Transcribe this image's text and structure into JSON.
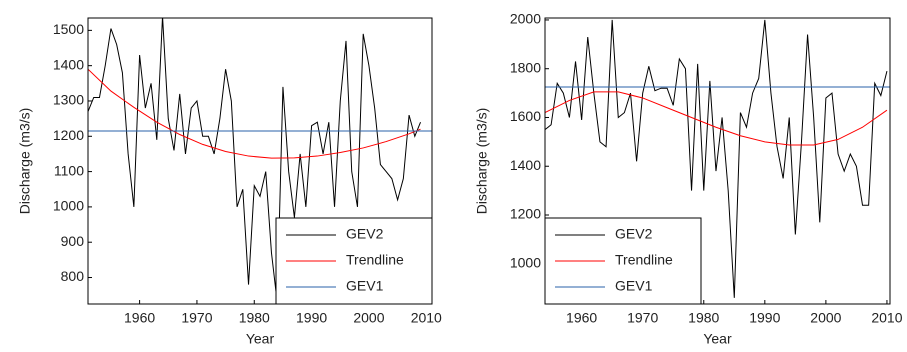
{
  "chart_data": [
    {
      "type": "line",
      "xlabel": "Year",
      "ylabel": "Discharge (m3/s)",
      "xlim": [
        1951,
        2011
      ],
      "ylim": [
        725,
        1535
      ],
      "xticks": [
        1960,
        1970,
        1980,
        1990,
        2000,
        2010
      ],
      "yticks": [
        800,
        900,
        1000,
        1100,
        1200,
        1300,
        1400,
        1500
      ],
      "legend": "lower right",
      "series": [
        {
          "name": "GEV2",
          "color": "#000000",
          "x": [
            1951,
            1952,
            1953,
            1954,
            1955,
            1956,
            1957,
            1958,
            1959,
            1960,
            1961,
            1962,
            1963,
            1964,
            1965,
            1966,
            1967,
            1968,
            1969,
            1970,
            1971,
            1972,
            1973,
            1974,
            1975,
            1976,
            1977,
            1978,
            1979,
            1980,
            1981,
            1982,
            1983,
            1984,
            1985,
            1986,
            1987,
            1988,
            1989,
            1990,
            1991,
            1992,
            1993,
            1994,
            1995,
            1996,
            1997,
            1998,
            1999,
            2000,
            2001,
            2002,
            2003,
            2004,
            2005,
            2006,
            2007,
            2008,
            2009
          ],
          "values": [
            1270,
            1310,
            1310,
            1400,
            1505,
            1460,
            1380,
            1150,
            1000,
            1430,
            1280,
            1350,
            1190,
            1540,
            1250,
            1160,
            1320,
            1150,
            1280,
            1300,
            1200,
            1200,
            1150,
            1250,
            1390,
            1300,
            1000,
            1050,
            780,
            1060,
            1030,
            1100,
            870,
            730,
            1340,
            1100,
            970,
            1150,
            1000,
            1230,
            1240,
            1150,
            1240,
            1000,
            1300,
            1470,
            1100,
            1000,
            1490,
            1400,
            1280,
            1120,
            1100,
            1080,
            1020,
            1080,
            1260,
            1200,
            1240
          ]
        },
        {
          "name": "Trendline",
          "color": "#ff0000",
          "x": [
            1951,
            1955,
            1959,
            1963,
            1967,
            1971,
            1975,
            1979,
            1983,
            1987,
            1991,
            1995,
            1999,
            2003,
            2007,
            2009
          ],
          "values": [
            1390,
            1328,
            1282,
            1240,
            1205,
            1177,
            1157,
            1144,
            1138,
            1139,
            1144,
            1154,
            1167,
            1185,
            1207,
            1220
          ]
        },
        {
          "name": "GEV1",
          "color": "#2a62a8",
          "x": [
            1951,
            2011
          ],
          "values": [
            1215,
            1215
          ]
        }
      ]
    },
    {
      "type": "line",
      "xlabel": "Year",
      "ylabel": "Discharge (m3/s)",
      "xlim": [
        1954,
        2010.5
      ],
      "ylim": [
        835,
        2008
      ],
      "xticks": [
        1960,
        1970,
        1980,
        1990,
        2000,
        2010
      ],
      "yticks": [
        1000,
        1200,
        1400,
        1600,
        1800,
        2000
      ],
      "legend": "lower left",
      "series": [
        {
          "name": "GEV2",
          "color": "#000000",
          "x": [
            1954,
            1955,
            1956,
            1957,
            1958,
            1959,
            1960,
            1961,
            1962,
            1963,
            1964,
            1965,
            1966,
            1967,
            1968,
            1969,
            1970,
            1971,
            1972,
            1973,
            1974,
            1975,
            1976,
            1977,
            1978,
            1979,
            1980,
            1981,
            1982,
            1983,
            1984,
            1985,
            1986,
            1987,
            1988,
            1989,
            1990,
            1991,
            1992,
            1993,
            1994,
            1995,
            1996,
            1997,
            1998,
            1999,
            2000,
            2001,
            2002,
            2003,
            2004,
            2005,
            2006,
            2007,
            2008,
            2009,
            2010
          ],
          "values": [
            1550,
            1570,
            1740,
            1700,
            1600,
            1830,
            1590,
            1930,
            1700,
            1500,
            1480,
            2000,
            1600,
            1620,
            1700,
            1420,
            1700,
            1810,
            1710,
            1720,
            1720,
            1650,
            1840,
            1800,
            1300,
            1820,
            1300,
            1750,
            1380,
            1600,
            1300,
            860,
            1620,
            1560,
            1700,
            1760,
            2000,
            1700,
            1480,
            1350,
            1600,
            1120,
            1500,
            1940,
            1600,
            1170,
            1680,
            1700,
            1450,
            1380,
            1450,
            1400,
            1240,
            1240,
            1740,
            1690,
            1790
          ]
        },
        {
          "name": "Trendline",
          "color": "#ff0000",
          "x": [
            1954,
            1958,
            1962,
            1966,
            1970,
            1974,
            1978,
            1982,
            1986,
            1990,
            1994,
            1998,
            2002,
            2006,
            2010
          ],
          "values": [
            1620,
            1670,
            1705,
            1705,
            1680,
            1640,
            1600,
            1560,
            1525,
            1500,
            1487,
            1487,
            1510,
            1560,
            1630
          ]
        },
        {
          "name": "GEV1",
          "color": "#2a62a8",
          "x": [
            1954,
            2010.5
          ],
          "values": [
            1725,
            1725
          ]
        }
      ]
    }
  ]
}
